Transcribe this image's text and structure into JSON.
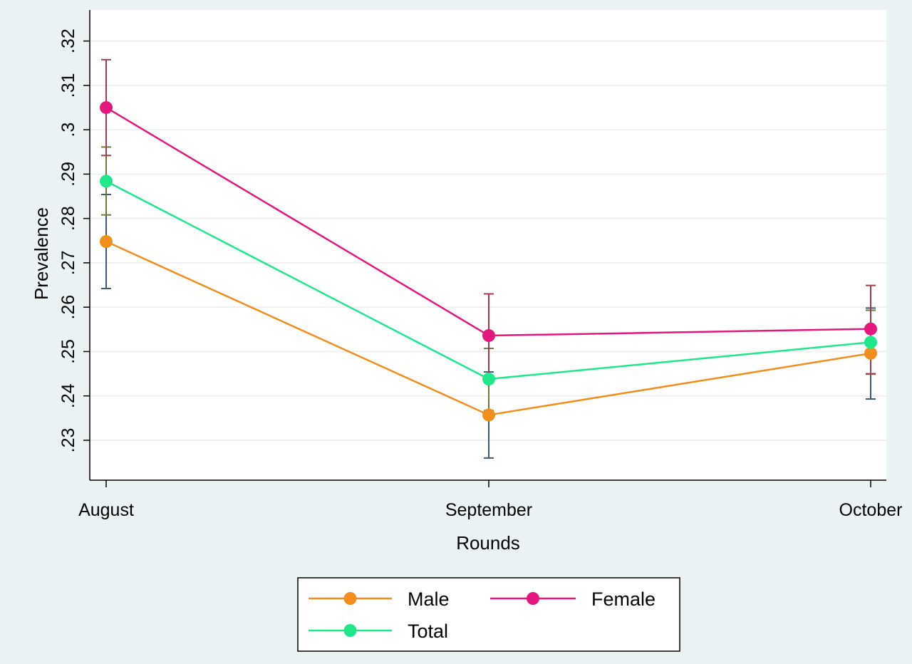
{
  "chart_data": {
    "type": "line",
    "title": "",
    "xlabel": "Rounds",
    "ylabel": "Prevalence",
    "categories": [
      "August",
      "September",
      "October"
    ],
    "ylim": [
      0.221,
      0.327
    ],
    "yticks": [
      0.23,
      0.24,
      0.25,
      0.26,
      0.27,
      0.28,
      0.29,
      0.3,
      0.31,
      0.32
    ],
    "ytick_labels": [
      ".23",
      ".24",
      ".25",
      ".26",
      ".27",
      ".28",
      ".29",
      ".3",
      ".31",
      ".32"
    ],
    "grid": true,
    "legend_position": "bottom",
    "series": [
      {
        "name": "Male",
        "color": "#f28e1c",
        "ci_color": "#3a5a78",
        "values": [
          0.2748,
          0.2357,
          0.2496
        ],
        "ci_low": [
          0.2642,
          0.226,
          0.2393
        ],
        "ci_high": [
          0.2854,
          0.2454,
          0.2598
        ]
      },
      {
        "name": "Female",
        "color": "#e2187f",
        "ci_color": "#a33a4a",
        "values": [
          0.305,
          0.2536,
          0.2551
        ],
        "ci_low": [
          0.2942,
          0.2442,
          0.245
        ],
        "ci_high": [
          0.3158,
          0.263,
          0.2649
        ]
      },
      {
        "name": "Total",
        "color": "#20e88a",
        "ci_color": "#6f7a3a",
        "values": [
          0.2884,
          0.2438,
          0.2521
        ],
        "ci_low": [
          0.2808,
          0.2367,
          0.2449
        ],
        "ci_high": [
          0.2961,
          0.2507,
          0.2593
        ]
      }
    ]
  }
}
